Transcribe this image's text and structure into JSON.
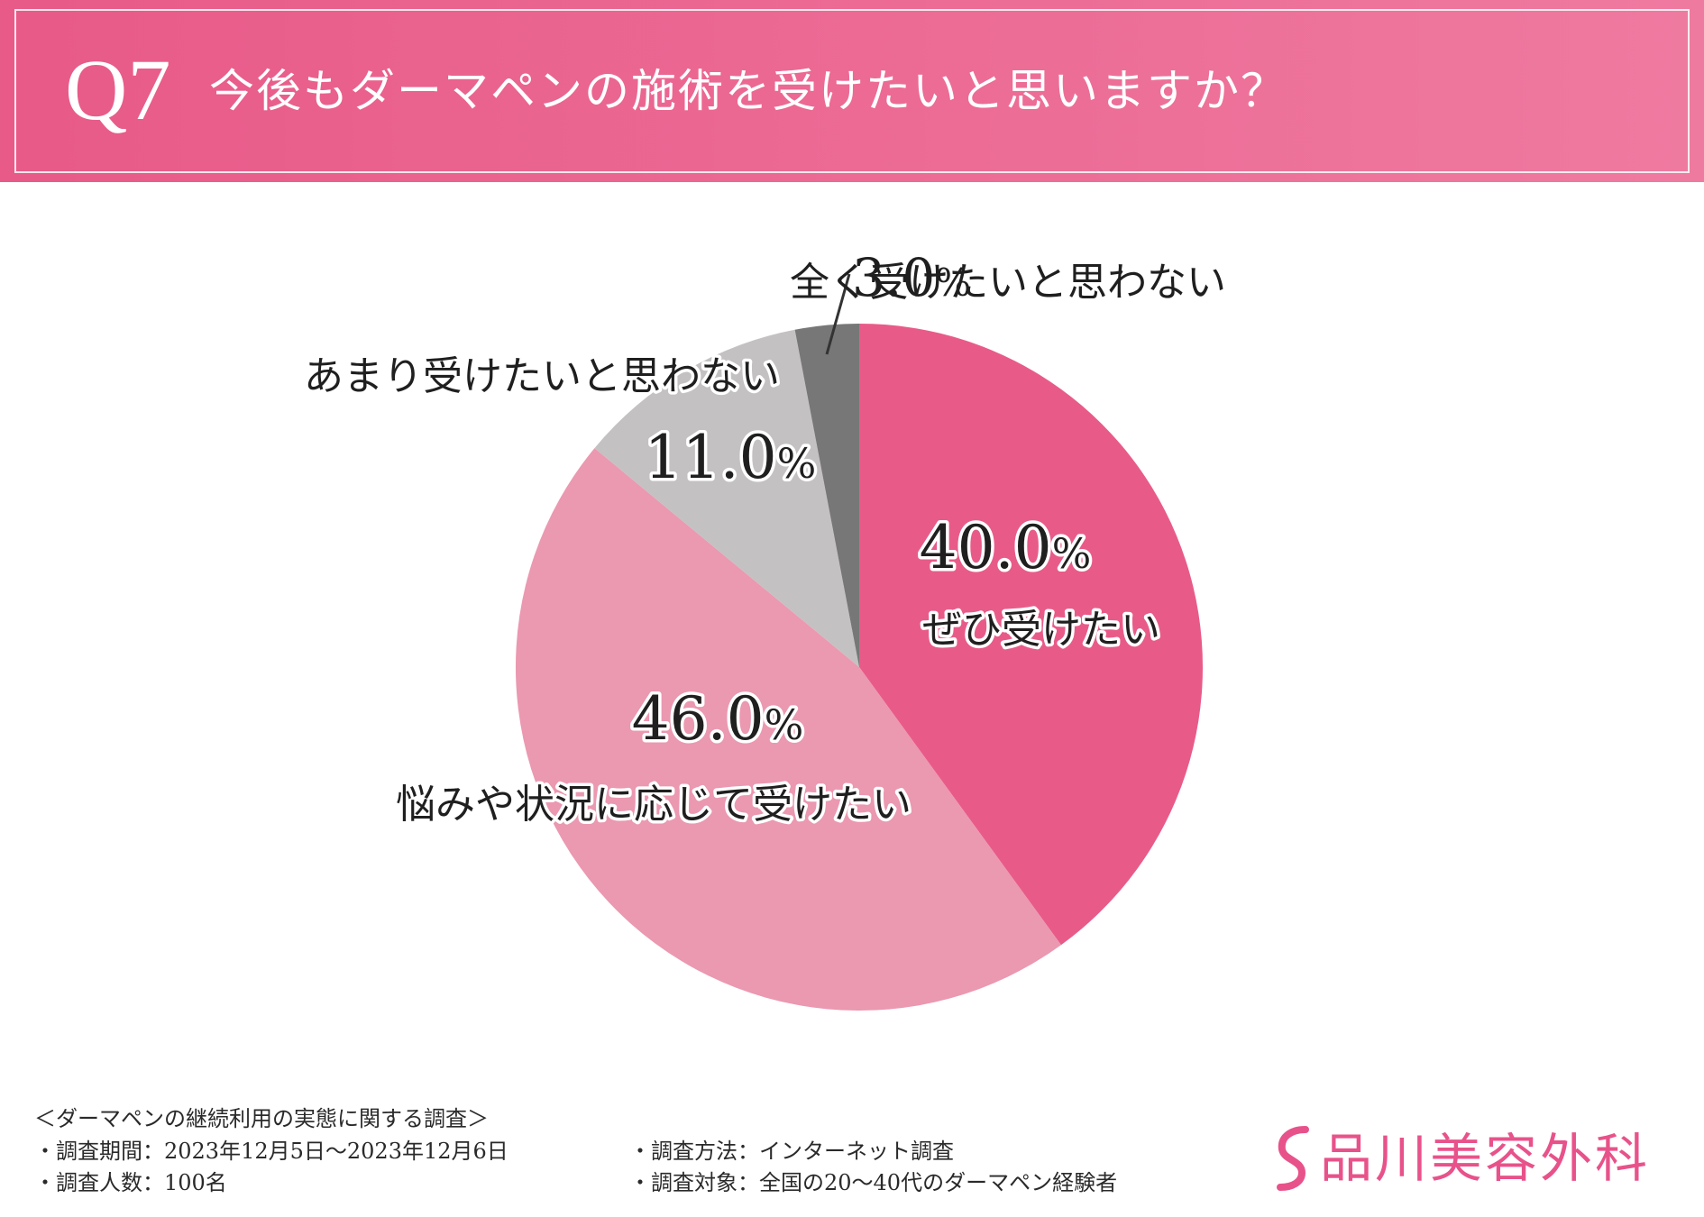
{
  "header": {
    "question_number": "Q7",
    "question_text": "今後もダーマペンの施術を受けたいと思いますか？"
  },
  "chart_data": {
    "type": "pie",
    "title": "今後もダーマペンの施術を受けたいと思いますか？",
    "unit": "%",
    "slices": [
      {
        "label": "ぜひ受けたい",
        "value": 40.0,
        "value_text": "40.0",
        "color": "#e85b89"
      },
      {
        "label": "悩みや状況に応じて受けたい",
        "value": 46.0,
        "value_text": "46.0",
        "color": "#eb98b1"
      },
      {
        "label": "あまり受けたいと思わない",
        "value": 11.0,
        "value_text": "11.0",
        "color": "#c4c1c2"
      },
      {
        "label": "全く受けたいと思わない",
        "value": 3.0,
        "value_text": "3.0",
        "color": "#777777"
      }
    ]
  },
  "survey": {
    "title": "＜ダーマペンの継続利用の実態に関する調査＞",
    "period": "・調査期間：2023年12月5日～2023年12月6日",
    "respondents": "・調査人数：100名",
    "method": "・調査方法：インターネット調査",
    "target": "・調査対象：全国の20～40代のダーマペン経験者"
  },
  "logo": {
    "text": "品川美容外科",
    "color": "#e8528a"
  }
}
